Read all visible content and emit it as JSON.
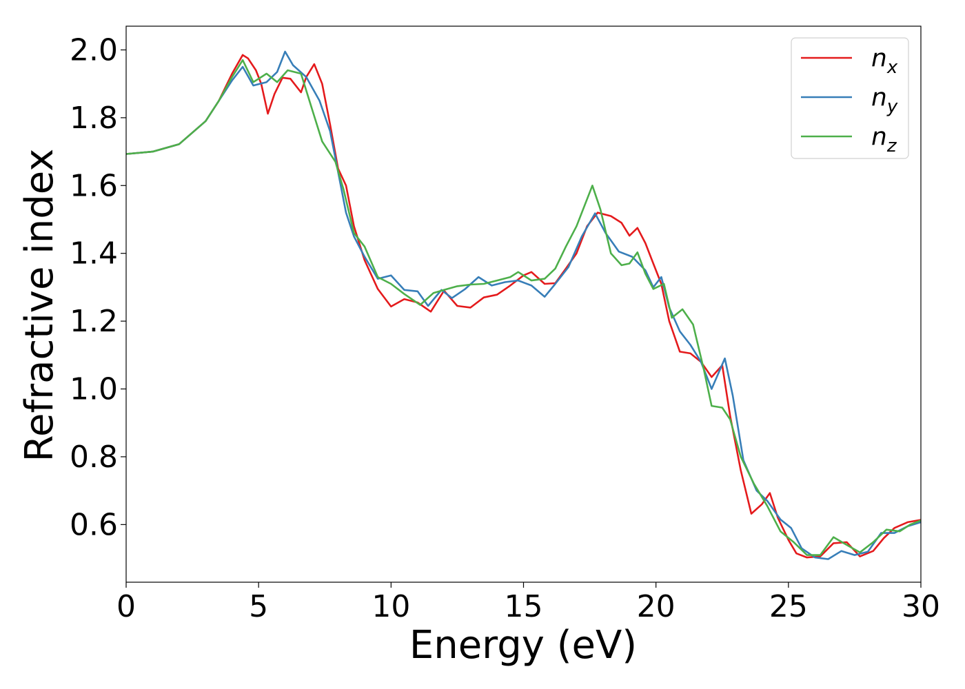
{
  "chart_data": {
    "type": "line",
    "title": "",
    "xlabel": "Energy (eV)",
    "ylabel": "Refractive index",
    "xlim": [
      0,
      30
    ],
    "ylim": [
      0.43,
      2.07
    ],
    "xticks": [
      0,
      5,
      10,
      15,
      20,
      25,
      30
    ],
    "xtick_labels": [
      "0",
      "5",
      "10",
      "15",
      "20",
      "25",
      "30"
    ],
    "yticks": [
      0.6,
      0.8,
      1.0,
      1.2,
      1.4,
      1.6,
      1.8,
      2.0
    ],
    "ytick_labels": [
      "0.6",
      "0.8",
      "1.0",
      "1.2",
      "1.4",
      "1.6",
      "1.8",
      "2.0"
    ],
    "grid": false,
    "legend_position": "top-right",
    "series": [
      {
        "name": "n",
        "subscript": "x",
        "color": "#e41a1c",
        "points": [
          [
            0,
            1.693
          ],
          [
            1,
            1.7
          ],
          [
            2,
            1.722
          ],
          [
            3,
            1.79
          ],
          [
            3.5,
            1.85
          ],
          [
            4,
            1.93
          ],
          [
            4.4,
            1.985
          ],
          [
            4.6,
            1.975
          ],
          [
            4.9,
            1.94
          ],
          [
            5.1,
            1.9
          ],
          [
            5.35,
            1.812
          ],
          [
            5.6,
            1.87
          ],
          [
            5.9,
            1.918
          ],
          [
            6.2,
            1.915
          ],
          [
            6.6,
            1.875
          ],
          [
            6.8,
            1.92
          ],
          [
            7.1,
            1.958
          ],
          [
            7.4,
            1.9
          ],
          [
            7.7,
            1.78
          ],
          [
            8.0,
            1.65
          ],
          [
            8.3,
            1.6
          ],
          [
            8.6,
            1.48
          ],
          [
            9.0,
            1.38
          ],
          [
            9.5,
            1.295
          ],
          [
            10.0,
            1.243
          ],
          [
            10.5,
            1.265
          ],
          [
            11.0,
            1.255
          ],
          [
            11.5,
            1.228
          ],
          [
            12.0,
            1.29
          ],
          [
            12.5,
            1.245
          ],
          [
            13.0,
            1.24
          ],
          [
            13.5,
            1.27
          ],
          [
            14.0,
            1.278
          ],
          [
            14.5,
            1.305
          ],
          [
            15.0,
            1.335
          ],
          [
            15.3,
            1.345
          ],
          [
            15.8,
            1.31
          ],
          [
            16.2,
            1.312
          ],
          [
            16.6,
            1.355
          ],
          [
            17.0,
            1.4
          ],
          [
            17.4,
            1.48
          ],
          [
            17.8,
            1.52
          ],
          [
            18.3,
            1.51
          ],
          [
            18.7,
            1.49
          ],
          [
            19.0,
            1.452
          ],
          [
            19.3,
            1.475
          ],
          [
            19.6,
            1.43
          ],
          [
            19.9,
            1.37
          ],
          [
            20.2,
            1.31
          ],
          [
            20.5,
            1.2
          ],
          [
            20.9,
            1.11
          ],
          [
            21.3,
            1.105
          ],
          [
            21.7,
            1.08
          ],
          [
            22.1,
            1.035
          ],
          [
            22.5,
            1.07
          ],
          [
            22.8,
            0.92
          ],
          [
            23.2,
            0.76
          ],
          [
            23.6,
            0.632
          ],
          [
            24.0,
            0.66
          ],
          [
            24.3,
            0.693
          ],
          [
            24.6,
            0.62
          ],
          [
            25.0,
            0.555
          ],
          [
            25.3,
            0.515
          ],
          [
            25.7,
            0.503
          ],
          [
            26.2,
            0.506
          ],
          [
            26.7,
            0.545
          ],
          [
            27.2,
            0.548
          ],
          [
            27.7,
            0.506
          ],
          [
            28.2,
            0.522
          ],
          [
            28.6,
            0.56
          ],
          [
            29.0,
            0.59
          ],
          [
            29.5,
            0.607
          ],
          [
            30.0,
            0.614
          ]
        ]
      },
      {
        "name": "n",
        "subscript": "y",
        "color": "#377eb8",
        "points": [
          [
            0,
            1.693
          ],
          [
            1,
            1.7
          ],
          [
            2,
            1.722
          ],
          [
            3,
            1.79
          ],
          [
            3.5,
            1.85
          ],
          [
            4,
            1.91
          ],
          [
            4.4,
            1.95
          ],
          [
            4.8,
            1.895
          ],
          [
            5.3,
            1.905
          ],
          [
            5.7,
            1.935
          ],
          [
            6.0,
            1.995
          ],
          [
            6.3,
            1.955
          ],
          [
            6.8,
            1.92
          ],
          [
            7.3,
            1.85
          ],
          [
            7.7,
            1.76
          ],
          [
            8.0,
            1.64
          ],
          [
            8.3,
            1.52
          ],
          [
            8.6,
            1.45
          ],
          [
            9.0,
            1.39
          ],
          [
            9.5,
            1.325
          ],
          [
            10.0,
            1.335
          ],
          [
            10.5,
            1.292
          ],
          [
            11.0,
            1.288
          ],
          [
            11.4,
            1.245
          ],
          [
            11.9,
            1.292
          ],
          [
            12.3,
            1.268
          ],
          [
            12.8,
            1.295
          ],
          [
            13.3,
            1.33
          ],
          [
            13.8,
            1.305
          ],
          [
            14.3,
            1.315
          ],
          [
            14.8,
            1.32
          ],
          [
            15.3,
            1.305
          ],
          [
            15.8,
            1.272
          ],
          [
            16.2,
            1.31
          ],
          [
            16.7,
            1.36
          ],
          [
            17.2,
            1.45
          ],
          [
            17.7,
            1.518
          ],
          [
            18.1,
            1.46
          ],
          [
            18.6,
            1.405
          ],
          [
            19.1,
            1.39
          ],
          [
            19.6,
            1.35
          ],
          [
            19.9,
            1.3
          ],
          [
            20.2,
            1.33
          ],
          [
            20.5,
            1.24
          ],
          [
            20.9,
            1.17
          ],
          [
            21.3,
            1.13
          ],
          [
            21.7,
            1.08
          ],
          [
            22.1,
            1.0
          ],
          [
            22.6,
            1.09
          ],
          [
            22.9,
            0.98
          ],
          [
            23.3,
            0.79
          ],
          [
            23.8,
            0.7
          ],
          [
            24.2,
            0.67
          ],
          [
            24.7,
            0.615
          ],
          [
            25.1,
            0.59
          ],
          [
            25.5,
            0.53
          ],
          [
            26.0,
            0.503
          ],
          [
            26.5,
            0.498
          ],
          [
            27.0,
            0.522
          ],
          [
            27.5,
            0.51
          ],
          [
            28.0,
            0.52
          ],
          [
            28.5,
            0.575
          ],
          [
            29.0,
            0.575
          ],
          [
            29.5,
            0.595
          ],
          [
            30.0,
            0.607
          ]
        ]
      },
      {
        "name": "n",
        "subscript": "z",
        "color": "#4daf4a",
        "points": [
          [
            0,
            1.693
          ],
          [
            1,
            1.7
          ],
          [
            2,
            1.722
          ],
          [
            3,
            1.79
          ],
          [
            3.5,
            1.85
          ],
          [
            4,
            1.92
          ],
          [
            4.4,
            1.97
          ],
          [
            4.8,
            1.905
          ],
          [
            5.3,
            1.93
          ],
          [
            5.7,
            1.905
          ],
          [
            6.1,
            1.94
          ],
          [
            6.6,
            1.93
          ],
          [
            7.0,
            1.83
          ],
          [
            7.4,
            1.73
          ],
          [
            7.9,
            1.67
          ],
          [
            8.2,
            1.59
          ],
          [
            8.6,
            1.46
          ],
          [
            9.0,
            1.42
          ],
          [
            9.5,
            1.33
          ],
          [
            10.0,
            1.31
          ],
          [
            10.5,
            1.28
          ],
          [
            11.1,
            1.248
          ],
          [
            11.6,
            1.283
          ],
          [
            12.0,
            1.292
          ],
          [
            12.5,
            1.303
          ],
          [
            13.0,
            1.308
          ],
          [
            13.5,
            1.31
          ],
          [
            14.0,
            1.32
          ],
          [
            14.5,
            1.33
          ],
          [
            14.8,
            1.345
          ],
          [
            15.3,
            1.32
          ],
          [
            15.8,
            1.325
          ],
          [
            16.2,
            1.355
          ],
          [
            16.6,
            1.42
          ],
          [
            17.0,
            1.48
          ],
          [
            17.6,
            1.6
          ],
          [
            17.9,
            1.53
          ],
          [
            18.3,
            1.4
          ],
          [
            18.7,
            1.365
          ],
          [
            19.0,
            1.37
          ],
          [
            19.3,
            1.403
          ],
          [
            19.6,
            1.34
          ],
          [
            19.9,
            1.295
          ],
          [
            20.3,
            1.31
          ],
          [
            20.6,
            1.21
          ],
          [
            21.0,
            1.235
          ],
          [
            21.4,
            1.19
          ],
          [
            21.8,
            1.06
          ],
          [
            22.1,
            0.95
          ],
          [
            22.5,
            0.945
          ],
          [
            22.8,
            0.91
          ],
          [
            23.2,
            0.8
          ],
          [
            23.7,
            0.72
          ],
          [
            24.2,
            0.655
          ],
          [
            24.7,
            0.58
          ],
          [
            25.2,
            0.548
          ],
          [
            25.7,
            0.51
          ],
          [
            26.2,
            0.51
          ],
          [
            26.7,
            0.563
          ],
          [
            27.2,
            0.54
          ],
          [
            27.7,
            0.518
          ],
          [
            28.2,
            0.548
          ],
          [
            28.7,
            0.585
          ],
          [
            29.2,
            0.58
          ],
          [
            29.6,
            0.6
          ],
          [
            30.0,
            0.612
          ]
        ]
      }
    ]
  }
}
